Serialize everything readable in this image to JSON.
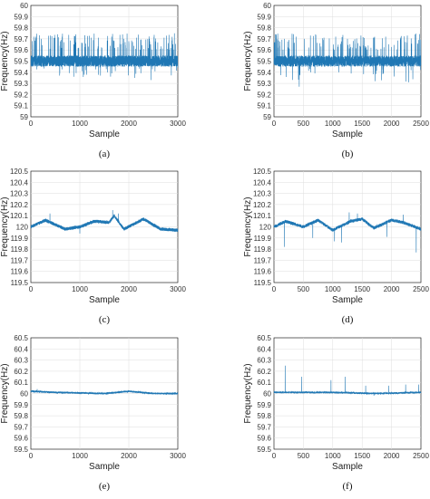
{
  "figure": {
    "line_color": "#1f77b4",
    "grid": true
  },
  "chart_data": [
    {
      "type": "line",
      "caption": "(a)",
      "xlabel": "Sample",
      "ylabel": "Frequency(Hz)",
      "xlim": [
        0,
        3000
      ],
      "xticks": [
        "0",
        "1000",
        "2000",
        "3000"
      ],
      "ylim": [
        59,
        60
      ],
      "yticks": [
        "59",
        "59.1",
        "59.2",
        "59.3",
        "59.4",
        "59.5",
        "59.6",
        "59.7",
        "59.8",
        "59.9",
        "60"
      ],
      "series": [
        {
          "n_points": 3000,
          "baseline": 59.5,
          "noise_band": 0.05,
          "spike_up_max": 59.75,
          "spike_down_min": 59.32,
          "spike_up": [
            [
              60,
              59.72
            ],
            [
              210,
              59.7
            ],
            [
              400,
              59.73
            ],
            [
              640,
              59.72
            ],
            [
              890,
              59.7
            ],
            [
              1100,
              59.73
            ],
            [
              1380,
              59.71
            ],
            [
              1650,
              59.72
            ],
            [
              1900,
              59.7
            ],
            [
              2160,
              59.71
            ],
            [
              2420,
              59.7
            ],
            [
              2720,
              59.71
            ],
            [
              2930,
              59.75
            ]
          ],
          "spike_down": [
            [
              2120,
              59.35
            ],
            [
              2450,
              59.33
            ]
          ]
        }
      ]
    },
    {
      "type": "line",
      "caption": "(b)",
      "xlabel": "Sample",
      "ylabel": "Frequency(Hz)",
      "xlim": [
        0,
        2500
      ],
      "xticks": [
        "0",
        "500",
        "1000",
        "1500",
        "2000",
        "2500"
      ],
      "ylim": [
        59,
        60
      ],
      "yticks": [
        "59",
        "59.1",
        "59.2",
        "59.3",
        "59.4",
        "59.5",
        "59.6",
        "59.7",
        "59.8",
        "59.9",
        "60"
      ],
      "series": [
        {
          "n_points": 2500,
          "baseline": 59.5,
          "noise_band": 0.05,
          "spike_up_max": 59.75,
          "spike_down_min": 59.27,
          "spike_up": [
            [
              40,
              59.73
            ],
            [
              180,
              59.7
            ],
            [
              380,
              59.72
            ],
            [
              620,
              59.73
            ],
            [
              850,
              59.71
            ],
            [
              1050,
              59.72
            ],
            [
              1250,
              59.7
            ],
            [
              1480,
              59.73
            ],
            [
              1700,
              59.71
            ],
            [
              1900,
              59.72
            ],
            [
              2150,
              59.71
            ],
            [
              2400,
              59.74
            ]
          ],
          "spike_down": [
            [
              430,
              59.27
            ],
            [
              1720,
              59.32
            ],
            [
              2290,
              59.31
            ]
          ]
        }
      ]
    },
    {
      "type": "line",
      "caption": "(c)",
      "xlabel": "Sample",
      "ylabel": "Frequency(Hz)",
      "xlim": [
        0,
        3000
      ],
      "xticks": [
        "0",
        "1000",
        "2000",
        "3000"
      ],
      "ylim": [
        119.5,
        120.5
      ],
      "yticks": [
        "119.5",
        "119.6",
        "119.7",
        "119.8",
        "119.9",
        "120",
        "120.1",
        "120.2",
        "120.3",
        "120.4",
        "120.5"
      ],
      "series": [
        {
          "n_points": 3000,
          "baseline": 120.0,
          "noise_band": 0.015,
          "wave": [
            [
              0,
              120.0
            ],
            [
              300,
              120.06
            ],
            [
              700,
              119.98
            ],
            [
              1000,
              120.0
            ],
            [
              1300,
              120.05
            ],
            [
              1600,
              120.04
            ],
            [
              1700,
              120.1
            ],
            [
              1900,
              119.98
            ],
            [
              2300,
              120.07
            ],
            [
              2650,
              119.98
            ],
            [
              3000,
              119.97
            ]
          ],
          "spike_up": [
            [
              390,
              120.12
            ],
            [
              1670,
              120.15
            ],
            [
              1790,
              120.12
            ]
          ],
          "spike_down": [
            [
              1000,
              119.94
            ]
          ]
        }
      ]
    },
    {
      "type": "line",
      "caption": "(d)",
      "xlabel": "Sample",
      "ylabel": "Frequency(Hz)",
      "xlim": [
        0,
        2500
      ],
      "xticks": [
        "0",
        "500",
        "1000",
        "1500",
        "2000",
        "2500"
      ],
      "ylim": [
        119.5,
        120.5
      ],
      "yticks": [
        "119.5",
        "119.6",
        "119.7",
        "119.8",
        "119.9",
        "120",
        "120.1",
        "120.2",
        "120.3",
        "120.4",
        "120.5"
      ],
      "series": [
        {
          "n_points": 2500,
          "baseline": 120.0,
          "noise_band": 0.015,
          "wave": [
            [
              0,
              120.0
            ],
            [
              200,
              120.05
            ],
            [
              500,
              120.0
            ],
            [
              750,
              120.06
            ],
            [
              1000,
              119.97
            ],
            [
              1300,
              120.05
            ],
            [
              1500,
              120.07
            ],
            [
              1700,
              119.99
            ],
            [
              2000,
              120.06
            ],
            [
              2200,
              120.04
            ],
            [
              2500,
              119.98
            ]
          ],
          "spike_up": [
            [
              1280,
              120.13
            ],
            [
              1420,
              120.12
            ],
            [
              2200,
              120.11
            ]
          ],
          "spike_down": [
            [
              180,
              119.82
            ],
            [
              660,
              119.9
            ],
            [
              1030,
              119.87
            ],
            [
              1150,
              119.86
            ],
            [
              1920,
              119.91
            ],
            [
              2420,
              119.77
            ]
          ]
        }
      ]
    },
    {
      "type": "line",
      "caption": "(e)",
      "xlabel": "Sample",
      "ylabel": "Frequency(Hz)",
      "xlim": [
        0,
        3000
      ],
      "xticks": [
        "0",
        "1000",
        "2000",
        "3000"
      ],
      "ylim": [
        59.5,
        60.5
      ],
      "yticks": [
        "59.5",
        "59.6",
        "59.7",
        "59.8",
        "59.9",
        "60",
        "60.1",
        "60.2",
        "60.3",
        "60.4",
        "60.5"
      ],
      "series": [
        {
          "n_points": 3000,
          "baseline": 60.0,
          "noise_band": 0.008,
          "wave": [
            [
              0,
              60.02
            ],
            [
              500,
              60.01
            ],
            [
              1500,
              60.0
            ],
            [
              2000,
              60.02
            ],
            [
              2500,
              60.0
            ],
            [
              3000,
              60.0
            ]
          ],
          "spike_up": [
            [
              130,
              60.04
            ]
          ],
          "spike_down": []
        }
      ]
    },
    {
      "type": "line",
      "caption": "(f)",
      "xlabel": "Sample",
      "ylabel": "Frequency(Hz)",
      "xlim": [
        0,
        2500
      ],
      "xticks": [
        "0",
        "500",
        "1000",
        "1500",
        "2000",
        "2500"
      ],
      "ylim": [
        59.5,
        60.5
      ],
      "yticks": [
        "59.5",
        "59.6",
        "59.7",
        "59.8",
        "59.9",
        "60",
        "60.1",
        "60.2",
        "60.3",
        "60.4",
        "60.5"
      ],
      "series": [
        {
          "n_points": 2500,
          "baseline": 60.0,
          "noise_band": 0.008,
          "wave": [
            [
              0,
              60.01
            ],
            [
              1000,
              60.01
            ],
            [
              1750,
              60.0
            ],
            [
              2500,
              60.01
            ]
          ],
          "spike_up": [
            [
              190,
              60.25
            ],
            [
              470,
              60.15
            ],
            [
              970,
              60.12
            ],
            [
              1210,
              60.15
            ],
            [
              1560,
              60.07
            ],
            [
              1950,
              60.07
            ],
            [
              2240,
              60.08
            ],
            [
              2460,
              60.08
            ]
          ],
          "spike_down": [
            [
              1700,
              59.98
            ]
          ]
        }
      ]
    }
  ]
}
